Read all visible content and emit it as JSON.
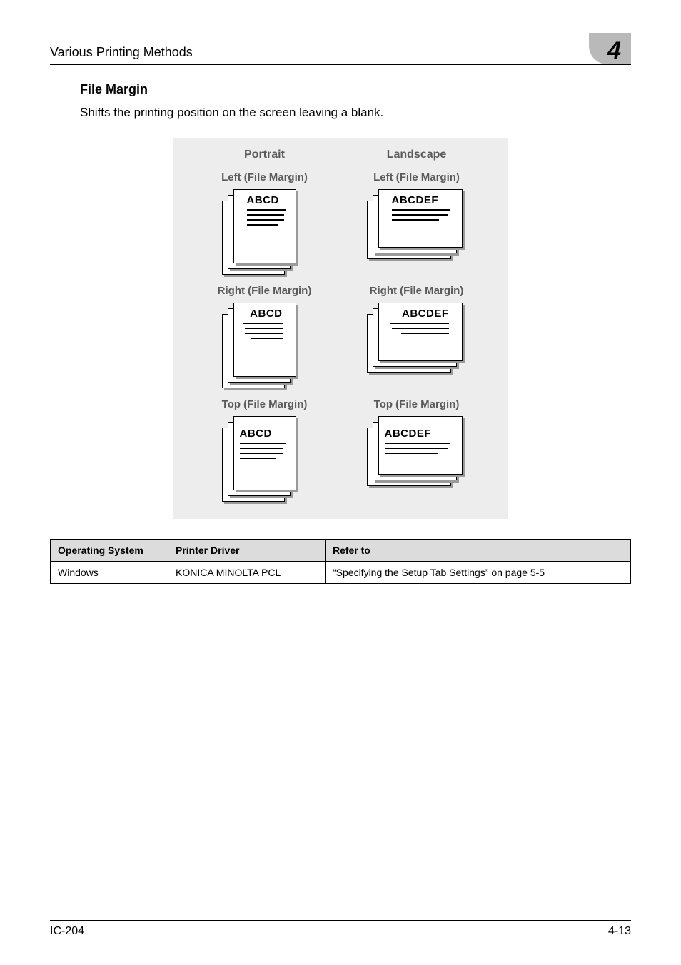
{
  "header": {
    "left": "Various Printing Methods",
    "chapter_number": "4"
  },
  "section": {
    "heading": "File Margin",
    "body": "Shifts the printing position on the screen leaving a blank."
  },
  "panel": {
    "columns": [
      "Portrait",
      "Landscape"
    ],
    "rows": [
      {
        "label_left": "Left (File Margin)",
        "text_left": "ABCD",
        "label_right": "Left (File Margin)",
        "text_right": "ABCDEF",
        "variant": "mg-left"
      },
      {
        "label_left": "Right (File Margin)",
        "text_left": "ABCD",
        "label_right": "Right (File Margin)",
        "text_right": "ABCDEF",
        "variant": "mg-right"
      },
      {
        "label_left": "Top (File Margin)",
        "text_left": "ABCD",
        "label_right": "Top (File Margin)",
        "text_right": "ABCDEF",
        "variant": "mg-top"
      }
    ]
  },
  "table": {
    "headers": [
      "Operating System",
      "Printer Driver",
      "Refer to"
    ],
    "rows": [
      [
        "Windows",
        "KONICA MINOLTA PCL",
        "“Specifying the Setup Tab Settings” on page 5-5"
      ]
    ]
  },
  "footer": {
    "left": "IC-204",
    "right": "4-13"
  }
}
